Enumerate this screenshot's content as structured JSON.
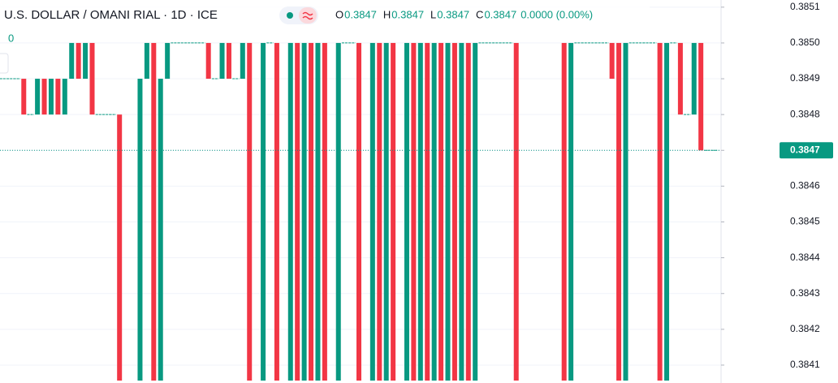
{
  "chart_data": {
    "type": "candlestick",
    "title": "U.S. DOLLAR / OMANI RIAL · 1D · ICE",
    "ohlc": [
      {
        "label": "O",
        "value": 0.3847
      },
      {
        "label": "H",
        "value": 0.3847
      },
      {
        "label": "L",
        "value": 0.3847
      },
      {
        "label": "C",
        "value": 0.3847
      }
    ],
    "change_label": "0.0000 (0.00%)",
    "indicator_value": 0,
    "last_price": 0.3847,
    "up_color": "#089981",
    "down_color": "#f23645",
    "ylim": [
      0.38405,
      0.38512
    ],
    "yticks": [
      {
        "value": 0.3841,
        "label": "0.3841"
      },
      {
        "value": 0.3842,
        "label": "0.3842"
      },
      {
        "value": 0.3843,
        "label": "0.3843"
      },
      {
        "value": 0.3844,
        "label": "0.3844"
      },
      {
        "value": 0.3845,
        "label": "0.3845"
      },
      {
        "value": 0.3846,
        "label": "0.3846"
      },
      {
        "value": 0.3847,
        "label": "0.3847"
      },
      {
        "value": 0.3848,
        "label": "0.3848"
      },
      {
        "value": 0.3849,
        "label": "0.3849"
      },
      {
        "value": 0.385,
        "label": "0.3850"
      },
      {
        "value": 0.3851,
        "label": "0.3851"
      }
    ],
    "grid": true,
    "open": [
      0.3849,
      0.3849,
      0.3849,
      0.3849,
      0.3848,
      0.3848,
      0.3849,
      0.3848,
      0.3849,
      0.3848,
      0.3849,
      0.385,
      0.3849,
      0.385,
      0.3848,
      0.3848,
      0.3848,
      0.3848,
      0.384,
      0.384,
      0.384,
      0.3849,
      0.385,
      0.384,
      0.3849,
      0.385,
      0.385,
      0.385,
      0.385,
      0.385,
      0.385,
      0.3849,
      0.3849,
      0.385,
      0.3849,
      0.3849,
      0.385,
      0.384,
      0.384,
      0.385,
      0.385,
      0.384,
      0.384,
      0.385,
      0.384,
      0.385,
      0.384,
      0.385,
      0.384,
      0.384,
      0.385,
      0.385,
      0.385,
      0.384,
      0.384,
      0.385,
      0.384,
      0.385,
      0.384,
      0.384,
      0.385,
      0.384,
      0.385,
      0.384,
      0.385,
      0.384,
      0.385,
      0.384,
      0.385,
      0.384,
      0.385,
      0.385,
      0.385,
      0.385,
      0.385,
      0.385,
      0.384,
      0.384,
      0.384,
      0.384,
      0.384,
      0.384,
      0.385,
      0.384,
      0.385,
      0.385,
      0.385,
      0.385,
      0.385,
      0.385,
      0.385,
      0.384,
      0.385,
      0.385,
      0.385,
      0.385,
      0.385,
      0.384,
      0.385,
      0.385,
      0.3848,
      0.3848,
      0.385,
      0.3847,
      0.3847
    ],
    "close": [
      0.3849,
      0.3849,
      0.3849,
      0.3848,
      0.3848,
      0.3849,
      0.3848,
      0.3849,
      0.3848,
      0.3849,
      0.385,
      0.3849,
      0.385,
      0.3848,
      0.3848,
      0.3848,
      0.3848,
      0.384,
      0.384,
      0.384,
      0.3849,
      0.385,
      0.384,
      0.3849,
      0.385,
      0.385,
      0.385,
      0.385,
      0.385,
      0.385,
      0.3849,
      0.3849,
      0.385,
      0.3849,
      0.3849,
      0.385,
      0.384,
      0.384,
      0.385,
      0.385,
      0.384,
      0.384,
      0.385,
      0.384,
      0.385,
      0.384,
      0.385,
      0.384,
      0.384,
      0.385,
      0.385,
      0.385,
      0.384,
      0.384,
      0.385,
      0.384,
      0.385,
      0.384,
      0.384,
      0.385,
      0.384,
      0.385,
      0.384,
      0.385,
      0.384,
      0.385,
      0.384,
      0.385,
      0.384,
      0.385,
      0.385,
      0.385,
      0.385,
      0.385,
      0.385,
      0.384,
      0.384,
      0.384,
      0.384,
      0.384,
      0.384,
      0.384,
      0.384,
      0.385,
      0.385,
      0.385,
      0.385,
      0.385,
      0.385,
      0.3849,
      0.384,
      0.385,
      0.385,
      0.385,
      0.385,
      0.385,
      0.384,
      0.385,
      0.385,
      0.3848,
      0.3848,
      0.385,
      0.3847,
      0.3847,
      0.3847
    ]
  }
}
